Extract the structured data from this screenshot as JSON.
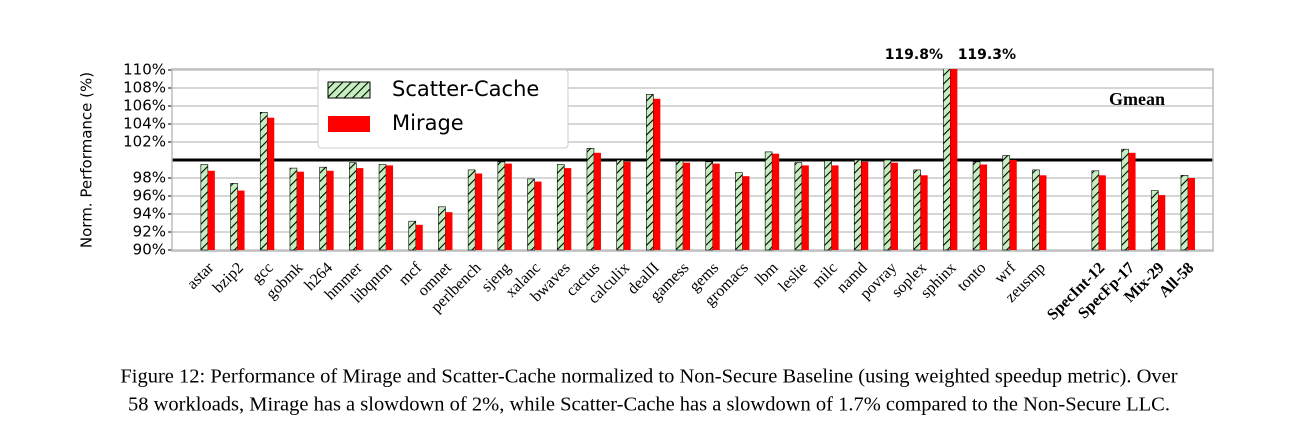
{
  "chart_data": {
    "type": "bar",
    "ylabel": "Norm. Performance (%)",
    "annotations": [
      "Gmean"
    ],
    "caption": [
      "Figure 12: Performance of Mirage and Scatter-Cache normalized to Non-Secure Baseline (using weighted speedup metric). Over",
      "58 workloads, Mirage has a slowdown of 2%, while Scatter-Cache has a slowdown of 1.7% compared to the Non-Secure LLC."
    ],
    "categories": [
      "astar",
      "bzip2",
      "gcc",
      "gobmk",
      "h264",
      "hmmer",
      "libqntm",
      "mcf",
      "omnet",
      "perlbench",
      "sjeng",
      "xalanc",
      "bwaves",
      "cactus",
      "calculix",
      "dealII",
      "gamess",
      "gems",
      "gromacs",
      "lbm",
      "leslie",
      "milc",
      "namd",
      "povray",
      "soplex",
      "sphinx",
      "tonto",
      "wrf",
      "zeusmp",
      null,
      "SpecInt-12",
      "SpecFp-17",
      "Mix-29",
      "All-58"
    ],
    "series": [
      {
        "name": "Scatter-Cache",
        "color": "#c6efc0",
        "hatch": true,
        "values": [
          99.5,
          97.4,
          105.3,
          99.1,
          99.2,
          99.7,
          99.5,
          93.2,
          94.8,
          98.9,
          99.8,
          97.9,
          99.5,
          101.3,
          100.0,
          107.3,
          99.9,
          99.8,
          98.6,
          100.9,
          99.7,
          99.9,
          100.0,
          100.0,
          98.9,
          119.8,
          99.8,
          100.5,
          98.9,
          null,
          98.8,
          101.2,
          96.6,
          98.3
        ],
        "value_labels": [
          null,
          null,
          null,
          null,
          null,
          null,
          null,
          null,
          null,
          null,
          null,
          null,
          null,
          null,
          null,
          null,
          null,
          null,
          null,
          null,
          null,
          null,
          null,
          null,
          null,
          "119.8%",
          null,
          null,
          null,
          null,
          null,
          null,
          null,
          null
        ]
      },
      {
        "name": "Mirage",
        "color": "#ff0000",
        "hatch": false,
        "values": [
          98.8,
          96.6,
          104.7,
          98.7,
          98.8,
          99.1,
          99.4,
          92.8,
          94.2,
          98.5,
          99.6,
          97.6,
          99.1,
          100.8,
          99.8,
          106.8,
          99.7,
          99.6,
          98.2,
          100.7,
          99.4,
          99.4,
          99.8,
          99.7,
          98.3,
          119.3,
          99.5,
          100.0,
          98.3,
          null,
          98.3,
          100.8,
          96.1,
          98.0
        ],
        "value_labels": [
          null,
          null,
          null,
          null,
          null,
          null,
          null,
          null,
          null,
          null,
          null,
          null,
          null,
          null,
          null,
          null,
          null,
          null,
          null,
          null,
          null,
          null,
          null,
          null,
          null,
          "119.3%",
          null,
          null,
          null,
          null,
          null,
          null,
          null,
          null
        ]
      }
    ],
    "ylim": [
      90,
      110
    ],
    "yticks": [
      {
        "value": 90,
        "label": "90%"
      },
      {
        "value": 92,
        "label": "92%"
      },
      {
        "value": 94,
        "label": "94%"
      },
      {
        "value": 96,
        "label": "96%"
      },
      {
        "value": 98,
        "label": "98%"
      },
      {
        "value": 102,
        "label": "102%"
      },
      {
        "value": 104,
        "label": "104%"
      },
      {
        "value": 106,
        "label": "106%"
      },
      {
        "value": 108,
        "label": "108%"
      },
      {
        "value": 110,
        "label": "110%"
      }
    ],
    "reference_line": 100,
    "grid": true,
    "legend": "upper-left"
  }
}
